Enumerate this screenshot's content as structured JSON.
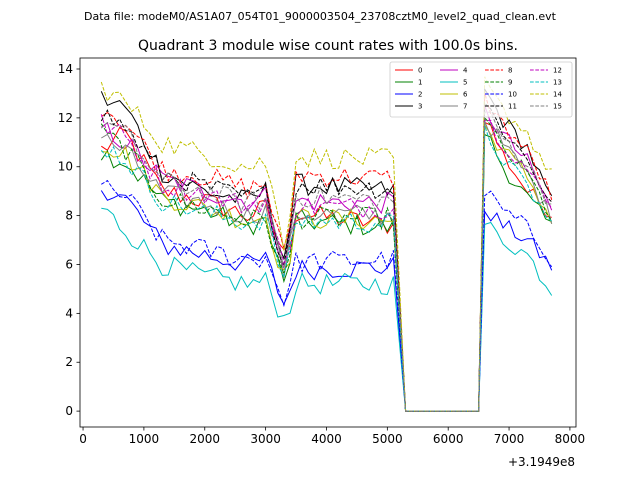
{
  "suptitle": "Data file: modeM0/AS1A07_054T01_9000003504_23708cztM0_level2_quad_clean.evt",
  "chart_data": {
    "type": "line",
    "title": "Quadrant 3 module wise count rates with 100.0s bins.",
    "xlabel": "",
    "ylabel": "",
    "x_offset_label": "+3.1949e8",
    "xlim": [
      -50,
      8100
    ],
    "ylim": [
      -0.65,
      14.45
    ],
    "xticks": [
      0,
      1000,
      2000,
      3000,
      4000,
      5000,
      6000,
      7000,
      8000
    ],
    "xtick_labels": [
      "0",
      "1000",
      "2000",
      "3000",
      "4000",
      "5000",
      "6000",
      "7000",
      "8000"
    ],
    "yticks": [
      0,
      2,
      4,
      6,
      8,
      10,
      12,
      14
    ],
    "ytick_labels": [
      "0",
      "2",
      "4",
      "6",
      "8",
      "10",
      "12",
      "14"
    ],
    "grid": false,
    "legend_position": "top-right",
    "legend_columns": 4,
    "segments": [
      {
        "start": 300,
        "end": 5100
      },
      {
        "start": 5300,
        "end": 6500
      },
      {
        "start": 6600,
        "end": 7700
      }
    ],
    "series": [
      {
        "name": "0",
        "color": "#ff0000",
        "dash": "solid",
        "profile": [
          10.7,
          11.3,
          9.0,
          8.6,
          8.0,
          8.3,
          6.0,
          8.1,
          7.6,
          12.1,
          10.5,
          9.0,
          8.1
        ]
      },
      {
        "name": "1",
        "color": "#008000",
        "dash": "solid",
        "profile": [
          10.6,
          10.2,
          8.6,
          8.2,
          7.6,
          7.8,
          4.7,
          7.8,
          7.5,
          11.5,
          10.0,
          8.7,
          7.5
        ]
      },
      {
        "name": "2",
        "color": "#0000ff",
        "dash": "solid",
        "profile": [
          9.2,
          8.7,
          6.8,
          6.4,
          6.0,
          6.2,
          4.1,
          5.8,
          5.9,
          8.3,
          7.6,
          7.0,
          5.9
        ]
      },
      {
        "name": "3",
        "color": "#000000",
        "dash": "solid",
        "profile": [
          12.8,
          12.4,
          9.8,
          9.0,
          8.6,
          9.0,
          5.9,
          9.3,
          9.0,
          13.1,
          11.9,
          10.8,
          8.5
        ]
      },
      {
        "name": "4",
        "color": "#bf00bf",
        "dash": "solid",
        "profile": [
          11.6,
          11.0,
          9.5,
          9.0,
          8.6,
          8.8,
          5.6,
          8.6,
          8.5,
          12.3,
          11.3,
          10.2,
          8.2
        ]
      },
      {
        "name": "5",
        "color": "#00bfbf",
        "dash": "solid",
        "profile": [
          8.3,
          7.4,
          6.0,
          5.5,
          5.2,
          5.3,
          3.5,
          5.2,
          5.2,
          7.7,
          7.0,
          6.4,
          4.9
        ]
      },
      {
        "name": "6",
        "color": "#bfbf00",
        "dash": "solid",
        "profile": [
          11.0,
          10.5,
          8.8,
          8.3,
          7.8,
          8.0,
          5.0,
          7.9,
          7.8,
          11.6,
          10.7,
          9.6,
          7.8
        ]
      },
      {
        "name": "7",
        "color": "#808080",
        "dash": "solid",
        "profile": [
          11.2,
          10.6,
          8.9,
          8.5,
          8.0,
          8.2,
          5.3,
          8.1,
          8.0,
          11.9,
          10.9,
          9.7,
          7.9
        ]
      },
      {
        "name": "8",
        "color": "#ff0000",
        "dash": "dashed",
        "profile": [
          12.5,
          11.8,
          9.9,
          9.6,
          9.1,
          9.3,
          5.8,
          9.7,
          9.5,
          12.8,
          11.7,
          10.6,
          8.8
        ]
      },
      {
        "name": "9",
        "color": "#008000",
        "dash": "dashed",
        "profile": [
          11.4,
          10.7,
          8.7,
          8.3,
          7.8,
          7.9,
          4.9,
          7.9,
          7.9,
          11.9,
          10.7,
          9.7,
          7.9
        ]
      },
      {
        "name": "10",
        "color": "#0000ff",
        "dash": "dashed",
        "profile": [
          9.1,
          8.8,
          7.0,
          6.6,
          6.2,
          6.3,
          4.3,
          6.1,
          6.2,
          9.0,
          8.2,
          7.5,
          6.2
        ]
      },
      {
        "name": "11",
        "color": "#000000",
        "dash": "dashed",
        "profile": [
          12.2,
          11.6,
          9.7,
          9.2,
          8.7,
          8.9,
          5.5,
          9.3,
          9.1,
          12.6,
          11.5,
          10.3,
          8.5
        ]
      },
      {
        "name": "12",
        "color": "#bf00bf",
        "dash": "dashed",
        "profile": [
          11.8,
          11.2,
          9.3,
          8.9,
          8.4,
          8.6,
          5.4,
          8.4,
          8.3,
          12.1,
          11.0,
          9.9,
          8.2
        ]
      },
      {
        "name": "13",
        "color": "#00bfbf",
        "dash": "dashed",
        "profile": [
          10.9,
          10.3,
          8.6,
          8.1,
          7.7,
          7.9,
          5.0,
          7.8,
          7.7,
          11.4,
          10.3,
          9.2,
          7.6
        ]
      },
      {
        "name": "14",
        "color": "#bfbf00",
        "dash": "dashed",
        "profile": [
          13.3,
          12.6,
          11.0,
          10.5,
          10.0,
          10.2,
          6.3,
          10.4,
          10.3,
          13.4,
          12.3,
          11.4,
          9.6
        ]
      },
      {
        "name": "15",
        "color": "#808080",
        "dash": "dashed",
        "profile": [
          11.9,
          11.3,
          9.4,
          9.0,
          8.5,
          8.7,
          5.5,
          8.8,
          8.6,
          12.3,
          11.2,
          10.1,
          8.4
        ]
      }
    ],
    "profile_times": [
      300,
      700,
      1300,
      2000,
      2700,
      3000,
      3350,
      3450,
      5100,
      6600,
      6900,
      7300,
      7700
    ],
    "zero_segment_value": 0
  }
}
